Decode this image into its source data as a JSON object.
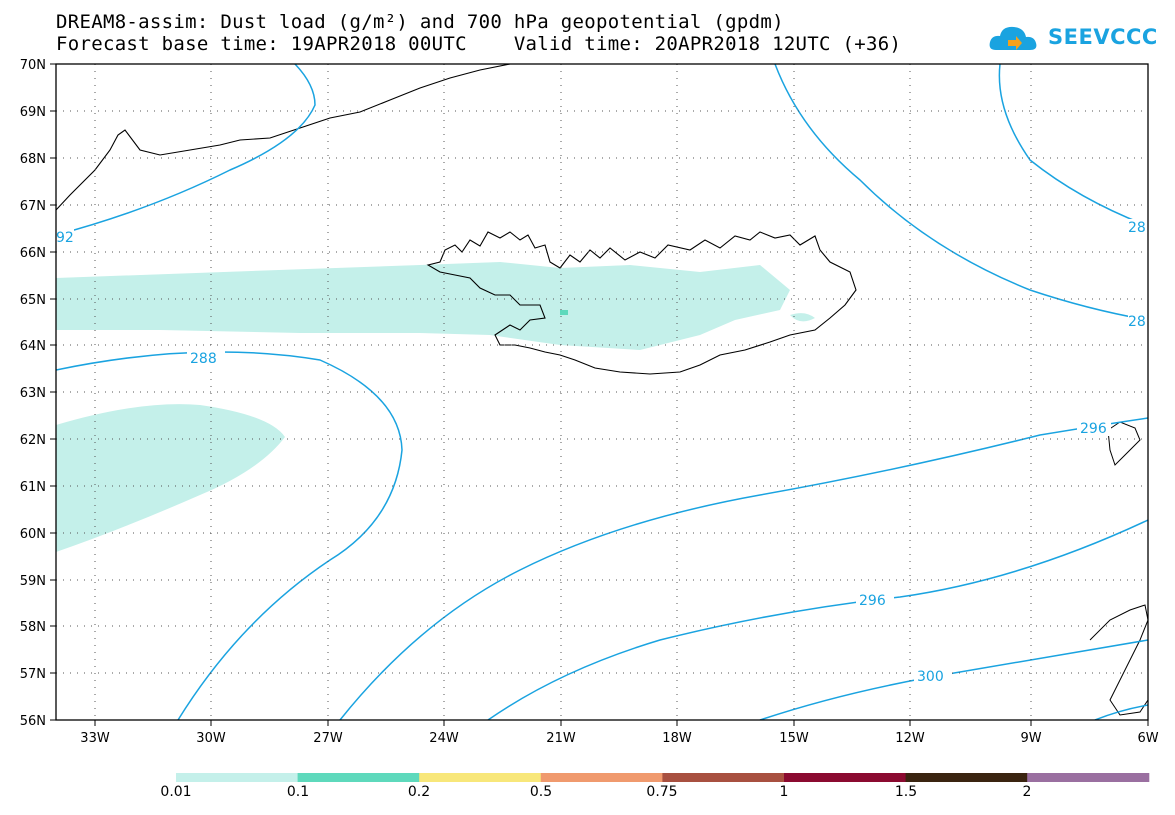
{
  "title_line1": "DREAM8-assim: Dust load (g/m²) and 700 hPa geopotential (gpdm)",
  "title_line2": "Forecast base time: 19APR2018 00UTC    Valid time: 20APR2018 12UTC (+36)",
  "logo_text": "SEEVCCC",
  "lat_labels": [
    "70N",
    "69N",
    "68N",
    "67N",
    "66N",
    "65N",
    "64N",
    "63N",
    "62N",
    "61N",
    "60N",
    "59N",
    "58N",
    "57N",
    "56N"
  ],
  "lon_labels": [
    "33W",
    "30W",
    "27W",
    "24W",
    "21W",
    "18W",
    "15W",
    "12W",
    "9W",
    "6W"
  ],
  "contour_labels": [
    "288",
    "296",
    "296",
    "300",
    "92",
    "28",
    "28"
  ],
  "colorbar": {
    "labels": [
      "0.01",
      "0.1",
      "0.2",
      "0.5",
      "0.75",
      "1",
      "1.5",
      "2"
    ],
    "colors": [
      "#c4f0ea",
      "#5ed9bc",
      "#f8e77a",
      "#f09a6e",
      "#a85040",
      "#8b0a30",
      "#3a2410",
      "#9a6fa0"
    ]
  },
  "colors": {
    "contour": "#1aa3e0",
    "dust_light": "#c4f0ea",
    "dust_mid": "#5ed9bc"
  }
}
